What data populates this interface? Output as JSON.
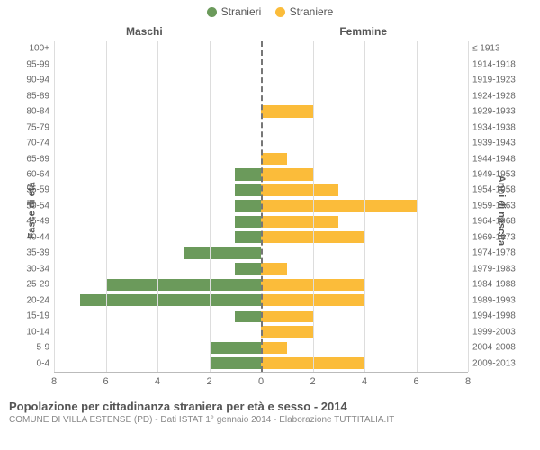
{
  "legend": {
    "male": {
      "label": "Stranieri",
      "color": "#6b9a5b"
    },
    "female": {
      "label": "Straniere",
      "color": "#fbbc3a"
    }
  },
  "column_headers": {
    "left": "Maschi",
    "right": "Femmine"
  },
  "axis_titles": {
    "left": "Fasce di età",
    "right": "Anni di nascita"
  },
  "chart": {
    "type": "population-pyramid",
    "xmax": 8,
    "xtick_step": 2,
    "xticks": [
      8,
      6,
      4,
      2,
      0,
      2,
      4,
      6,
      8
    ],
    "background_color": "#ffffff",
    "grid_color": "#dddddd",
    "zero_line_color": "#777777",
    "bar_color_left": "#6b9a5b",
    "bar_color_right": "#fbbc3a",
    "label_fontsize": 10,
    "rows": [
      {
        "age": "100+",
        "birth": "≤ 1913",
        "m": 0,
        "f": 0
      },
      {
        "age": "95-99",
        "birth": "1914-1918",
        "m": 0,
        "f": 0
      },
      {
        "age": "90-94",
        "birth": "1919-1923",
        "m": 0,
        "f": 0
      },
      {
        "age": "85-89",
        "birth": "1924-1928",
        "m": 0,
        "f": 0
      },
      {
        "age": "80-84",
        "birth": "1929-1933",
        "m": 0,
        "f": 2
      },
      {
        "age": "75-79",
        "birth": "1934-1938",
        "m": 0,
        "f": 0
      },
      {
        "age": "70-74",
        "birth": "1939-1943",
        "m": 0,
        "f": 0
      },
      {
        "age": "65-69",
        "birth": "1944-1948",
        "m": 0,
        "f": 1
      },
      {
        "age": "60-64",
        "birth": "1949-1953",
        "m": 1,
        "f": 2
      },
      {
        "age": "55-59",
        "birth": "1954-1958",
        "m": 1,
        "f": 3
      },
      {
        "age": "50-54",
        "birth": "1959-1963",
        "m": 1,
        "f": 6
      },
      {
        "age": "45-49",
        "birth": "1964-1968",
        "m": 1,
        "f": 3
      },
      {
        "age": "40-44",
        "birth": "1969-1973",
        "m": 1,
        "f": 4
      },
      {
        "age": "35-39",
        "birth": "1974-1978",
        "m": 3,
        "f": 0
      },
      {
        "age": "30-34",
        "birth": "1979-1983",
        "m": 1,
        "f": 1
      },
      {
        "age": "25-29",
        "birth": "1984-1988",
        "m": 6,
        "f": 4
      },
      {
        "age": "20-24",
        "birth": "1989-1993",
        "m": 7,
        "f": 4
      },
      {
        "age": "15-19",
        "birth": "1994-1998",
        "m": 1,
        "f": 2
      },
      {
        "age": "10-14",
        "birth": "1999-2003",
        "m": 0,
        "f": 2
      },
      {
        "age": "5-9",
        "birth": "2004-2008",
        "m": 2,
        "f": 1
      },
      {
        "age": "0-4",
        "birth": "2009-2013",
        "m": 2,
        "f": 4
      }
    ]
  },
  "footer": {
    "title": "Popolazione per cittadinanza straniera per età e sesso - 2014",
    "subtitle": "COMUNE DI VILLA ESTENSE (PD) - Dati ISTAT 1° gennaio 2014 - Elaborazione TUTTITALIA.IT"
  }
}
